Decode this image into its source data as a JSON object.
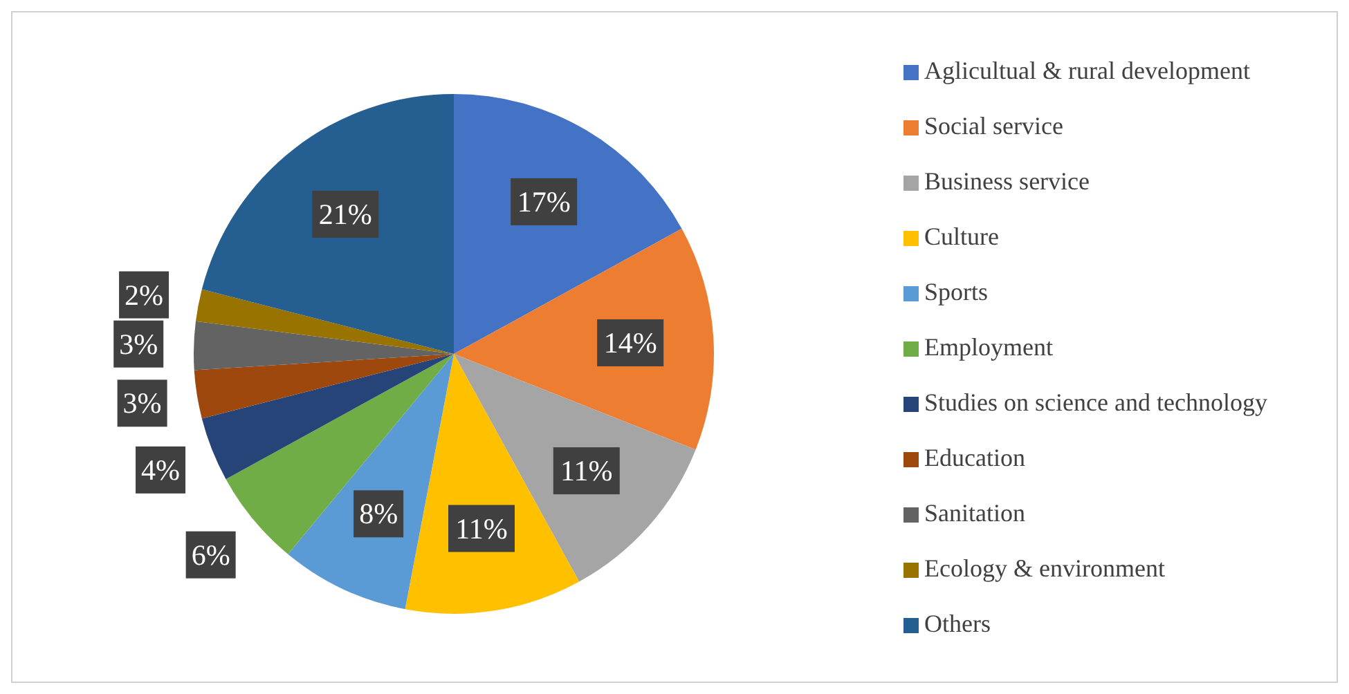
{
  "chart_data": {
    "type": "pie",
    "categories": [
      "Aglicultual & rural development",
      "Social service",
      "Business service",
      "Culture",
      "Sports",
      "Employment",
      "Studies on science and technology",
      "Education",
      "Sanitation",
      "Ecology & environment",
      "Others"
    ],
    "values": [
      17,
      14,
      11,
      11,
      8,
      6,
      4,
      3,
      3,
      2,
      21
    ],
    "colors": [
      "#4472c4",
      "#ed7d31",
      "#a5a5a5",
      "#ffc000",
      "#5b9bd5",
      "#70ad47",
      "#264478",
      "#9e480e",
      "#636363",
      "#997300",
      "#255e91"
    ],
    "value_labels": [
      "17%",
      "14%",
      "11%",
      "11%",
      "8%",
      "6%",
      "4%",
      "3%",
      "3%",
      "2%",
      "21%"
    ],
    "legend": "right"
  }
}
